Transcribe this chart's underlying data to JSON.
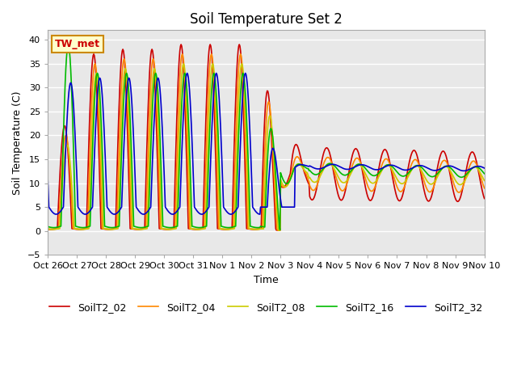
{
  "title": "Soil Temperature Set 2",
  "xlabel": "Time",
  "ylabel": "Soil Temperature (C)",
  "ylim": [
    -5,
    42
  ],
  "yticks": [
    -5,
    0,
    5,
    10,
    15,
    20,
    25,
    30,
    35,
    40
  ],
  "plot_background": "#e8e8e8",
  "grid_color": "white",
  "series": {
    "SoilT2_02": {
      "color": "#cc0000",
      "lw": 1.2
    },
    "SoilT2_04": {
      "color": "#ff8800",
      "lw": 1.2
    },
    "SoilT2_08": {
      "color": "#cccc00",
      "lw": 1.2
    },
    "SoilT2_16": {
      "color": "#00bb00",
      "lw": 1.2
    },
    "SoilT2_32": {
      "color": "#0000cc",
      "lw": 1.2
    }
  },
  "annotation": {
    "text": "TW_met",
    "facecolor": "#ffffcc",
    "edgecolor": "#cc8800",
    "textcolor": "#cc0000",
    "fontsize": 9,
    "fontweight": "bold"
  },
  "xtick_labels": [
    "Oct 26",
    "Oct 27",
    "Oct 28",
    "Oct 29",
    "Oct 30",
    "Oct 31",
    "Nov 1",
    "Nov 2",
    "Nov 3",
    "Nov 4",
    "Nov 5",
    "Nov 6",
    "Nov 7",
    "Nov 8",
    "Nov 9",
    "Nov 10"
  ],
  "title_fontsize": 12,
  "axis_label_fontsize": 9,
  "tick_fontsize": 8
}
